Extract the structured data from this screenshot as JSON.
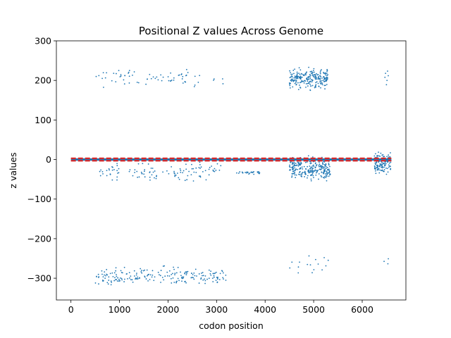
{
  "chart_data": {
    "type": "scatter",
    "title": "Positional Z values Across Genome",
    "xlabel": "codon position",
    "ylabel": "z values",
    "xlim": [
      -300,
      6900
    ],
    "ylim": [
      -355,
      300
    ],
    "xticks": [
      0,
      1000,
      2000,
      3000,
      4000,
      5000,
      6000
    ],
    "xtick_labels": [
      "0",
      "1000",
      "2000",
      "3000",
      "4000",
      "5000",
      "6000"
    ],
    "yticks": [
      -300,
      -200,
      -100,
      0,
      100,
      200,
      300
    ],
    "ytick_labels": [
      "−300",
      "−200",
      "−100",
      "0",
      "100",
      "200",
      "300"
    ],
    "grid": false,
    "colors": {
      "points": "#1f77b4",
      "threshold_line": "#d62728",
      "axes": "#000000"
    },
    "threshold_band": {
      "x_range": [
        0,
        6600
      ],
      "y_upper": 3,
      "y_lower": -3,
      "style": "dashed"
    },
    "series": [
      {
        "values_description_clusters": true,
        "clusters": [
          {
            "x_range": [
              400,
              3200
            ],
            "y_center": 205,
            "y_spread": 30,
            "count": 70
          },
          {
            "x_range": [
              4500,
              5300
            ],
            "y_center": 205,
            "y_spread": 35,
            "count": 230
          },
          {
            "x_range": [
              6450,
              6550
            ],
            "y_center": 205,
            "y_spread": 30,
            "count": 6
          },
          {
            "x_range": [
              500,
              3100
            ],
            "y_center": -30,
            "y_spread": 30,
            "count": 110
          },
          {
            "x_range": [
              3400,
              3900
            ],
            "y_center": -33,
            "y_spread": 6,
            "count": 25
          },
          {
            "x_range": [
              4500,
              5350
            ],
            "y_center": -25,
            "y_spread": 40,
            "count": 260
          },
          {
            "x_range": [
              6250,
              6600
            ],
            "y_center": -10,
            "y_spread": 40,
            "count": 130
          },
          {
            "x_range": [
              500,
              3200
            ],
            "y_center": -295,
            "y_spread": 30,
            "count": 200
          },
          {
            "x_range": [
              4500,
              5300
            ],
            "y_center": -265,
            "y_spread": 40,
            "count": 16
          },
          {
            "x_range": [
              6450,
              6550
            ],
            "y_center": -260,
            "y_spread": 15,
            "count": 3
          }
        ]
      }
    ]
  }
}
